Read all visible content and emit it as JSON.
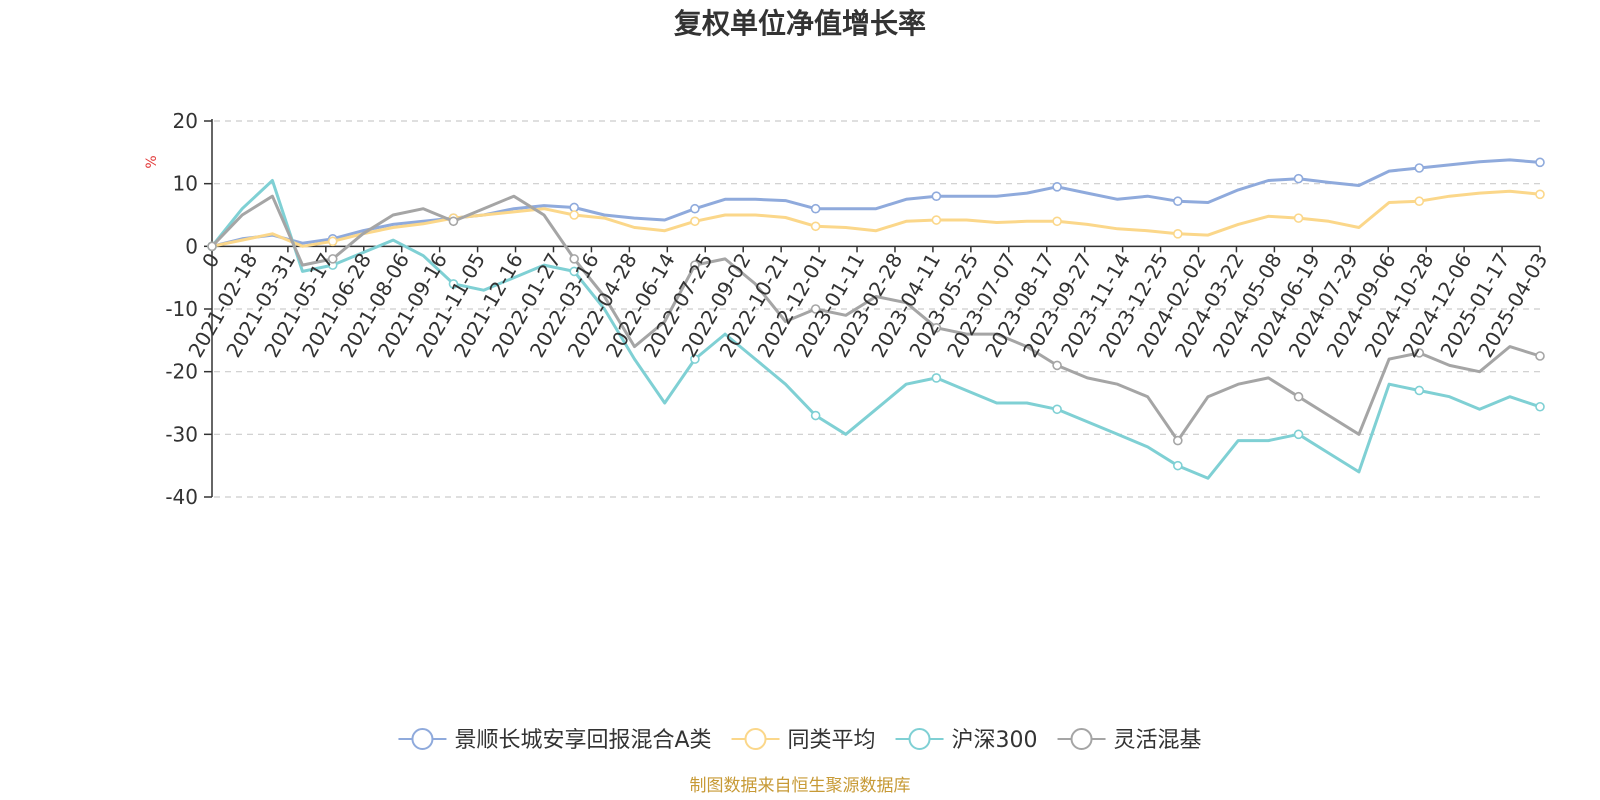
{
  "chart_data": {
    "type": "line",
    "title": "复权单位净值增长率",
    "unit": "%",
    "source": "制图数据来自恒生聚源数据库",
    "ylim": [
      -40,
      20
    ],
    "yticks": [
      20,
      10,
      0,
      -10,
      -20,
      -30,
      -40
    ],
    "grid": true,
    "legend_position": "bottom",
    "x_tick_labels": [
      "0",
      "2021-02-18",
      "2021-03-31",
      "2021-05-17",
      "2021-06-28",
      "2021-08-06",
      "2021-09-16",
      "2021-11-05",
      "2021-12-16",
      "2022-01-27",
      "2022-03-16",
      "2022-04-28",
      "2022-06-14",
      "2022-07-25",
      "2022-09-02",
      "2022-10-21",
      "2022-12-01",
      "2023-01-11",
      "2023-02-28",
      "2023-04-11",
      "2023-05-25",
      "2023-07-07",
      "2023-08-17",
      "2023-09-27",
      "2023-11-14",
      "2023-12-25",
      "2024-02-02",
      "2024-03-22",
      "2024-05-08",
      "2024-06-19",
      "2024-07-29",
      "2024-09-06",
      "2024-10-28",
      "2024-12-06",
      "2025-01-17",
      "2025-04-03"
    ],
    "series": [
      {
        "name": "景顺长城安享回报混合A类",
        "color": "#8faadc",
        "values": [
          0,
          1.2,
          1.8,
          0.5,
          1.2,
          2.5,
          3.5,
          4,
          4.5,
          5,
          6,
          6.5,
          6.2,
          5,
          4.5,
          4.2,
          6,
          7.5,
          7.5,
          7.3,
          6,
          6,
          6,
          7.5,
          8,
          8,
          8,
          8.5,
          9.5,
          8.5,
          7.5,
          8,
          7.2,
          7,
          9,
          10.5,
          10.8,
          10.2,
          9.7,
          12,
          12.5,
          13,
          13.5,
          13.8,
          13.4
        ]
      },
      {
        "name": "同类平均",
        "color": "#fbd78a",
        "values": [
          0,
          1,
          2,
          0,
          0.8,
          2,
          3,
          3.6,
          4.5,
          5,
          5.5,
          6,
          5,
          4.5,
          3,
          2.5,
          4,
          5,
          5,
          4.6,
          3.2,
          3,
          2.5,
          4,
          4.2,
          4.2,
          3.8,
          4,
          4,
          3.5,
          2.8,
          2.5,
          2,
          1.8,
          3.5,
          4.8,
          4.5,
          4,
          3,
          7,
          7.2,
          8,
          8.5,
          8.8,
          8.3
        ]
      },
      {
        "name": "沪深300",
        "color": "#7fd0d4",
        "values": [
          0,
          6,
          10.5,
          -4,
          -3,
          -1,
          1,
          -1.5,
          -6,
          -7,
          -5,
          -3,
          -4,
          -10,
          -18,
          -25,
          -18,
          -14,
          -18,
          -22,
          -27,
          -30,
          -26,
          -22,
          -21,
          -23,
          -25,
          -25,
          -26,
          -28,
          -30,
          -32,
          -35,
          -37,
          -31,
          -31,
          -30,
          -33,
          -36,
          -22,
          -23,
          -24,
          -26,
          -24,
          -25.6
        ]
      },
      {
        "name": "灵活混基",
        "color": "#a5a5a5",
        "values": [
          0,
          5,
          8,
          -3,
          -2,
          2,
          5,
          6,
          4,
          6,
          8,
          5,
          -2,
          -8,
          -16,
          -12,
          -3,
          -2,
          -6,
          -12,
          -10,
          -11,
          -8,
          -9,
          -13,
          -14,
          -14,
          -16,
          -19,
          -21,
          -22,
          -24,
          -31,
          -24,
          -22,
          -21,
          -24,
          -27,
          -30,
          -18,
          -17,
          -19,
          -20,
          -16,
          -17.5
        ]
      }
    ]
  }
}
